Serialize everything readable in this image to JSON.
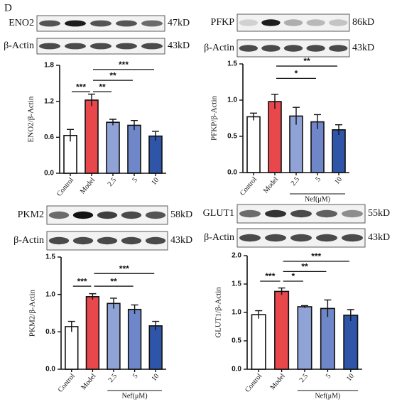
{
  "panel_label": "D",
  "chart_data": [
    {
      "type": "bar",
      "ylabel": "ENO2/β-Actin",
      "blot": [
        {
          "label": "ENO2",
          "size": "47kD"
        },
        {
          "label": "β-Actin",
          "size": "43kD"
        }
      ],
      "categories": [
        "Control",
        "Model",
        "2.5",
        "5",
        "10"
      ],
      "values": [
        0.63,
        1.22,
        0.85,
        0.8,
        0.62
      ],
      "errors": [
        0.1,
        0.1,
        0.05,
        0.08,
        0.08
      ],
      "colors": [
        "#ffffff",
        "#e8474c",
        "#8fa3d6",
        "#6f86c9",
        "#2f55a8"
      ],
      "ylim": [
        0,
        1.8
      ],
      "yticks": [
        {
          "value": 0,
          "label": "0.0"
        },
        0.6,
        1.2,
        1.8
      ],
      "annotations": [
        "***",
        "**",
        "**",
        "***"
      ]
    },
    {
      "type": "bar",
      "ylabel": "PFKP/β-Actin",
      "xlabel": "Nef(μM)",
      "blot": [
        {
          "label": "PFKP",
          "size": "86kD"
        },
        {
          "label": "β-Actin",
          "size": "43kD"
        }
      ],
      "categories": [
        "Control",
        "Model",
        "2.5",
        "5",
        "10"
      ],
      "values": [
        0.77,
        0.98,
        0.78,
        0.7,
        0.59
      ],
      "errors": [
        0.05,
        0.1,
        0.12,
        0.1,
        0.07
      ],
      "colors": [
        "#ffffff",
        "#e8474c",
        "#8fa3d6",
        "#6f86c9",
        "#2f55a8"
      ],
      "ylim": [
        0,
        1.5
      ],
      "yticks": [
        {
          "value": 0,
          "label": "0.0"
        },
        0.5,
        {
          "value": 1,
          "label": "1.0"
        },
        1.5
      ],
      "annotations": [
        "*",
        "**"
      ]
    },
    {
      "type": "bar",
      "ylabel": "PKM2/β-Actin",
      "xlabel": "Nef(μM)",
      "blot": [
        {
          "label": "PKM2",
          "size": "58kD"
        },
        {
          "label": "β-Actin",
          "size": "43kD"
        }
      ],
      "categories": [
        "Control",
        "Model",
        "2.5",
        "5",
        "10"
      ],
      "values": [
        0.57,
        0.97,
        0.88,
        0.8,
        0.58
      ],
      "errors": [
        0.07,
        0.04,
        0.07,
        0.06,
        0.06
      ],
      "colors": [
        "#ffffff",
        "#e8474c",
        "#8fa3d6",
        "#6f86c9",
        "#2f55a8"
      ],
      "ylim": [
        0,
        1.5
      ],
      "yticks": [
        {
          "value": 0,
          "label": "0.0"
        },
        0.5,
        {
          "value": 1,
          "label": "1.0"
        },
        1.5
      ],
      "annotations": [
        "***",
        "**",
        "***"
      ]
    },
    {
      "type": "bar",
      "ylabel": "GLUT1/β-Actin",
      "xlabel": "Nef(μM)",
      "blot": [
        {
          "label": "GLUT1",
          "size": "55kD"
        },
        {
          "label": "β-Actin",
          "size": "43kD"
        }
      ],
      "categories": [
        "Control",
        "Model",
        "2.5",
        "5",
        "10"
      ],
      "values": [
        0.96,
        1.37,
        1.1,
        1.07,
        0.95
      ],
      "errors": [
        0.07,
        0.06,
        0.02,
        0.15,
        0.1
      ],
      "colors": [
        "#ffffff",
        "#e8474c",
        "#8fa3d6",
        "#6f86c9",
        "#2f55a8"
      ],
      "ylim": [
        0,
        2
      ],
      "yticks": [
        {
          "value": 0,
          "label": "0.0"
        },
        0.5,
        {
          "value": 1,
          "label": "1.0"
        },
        1.5,
        {
          "value": 2,
          "label": "2.0"
        }
      ],
      "annotations": [
        "***",
        "*",
        "**",
        "***"
      ]
    }
  ]
}
